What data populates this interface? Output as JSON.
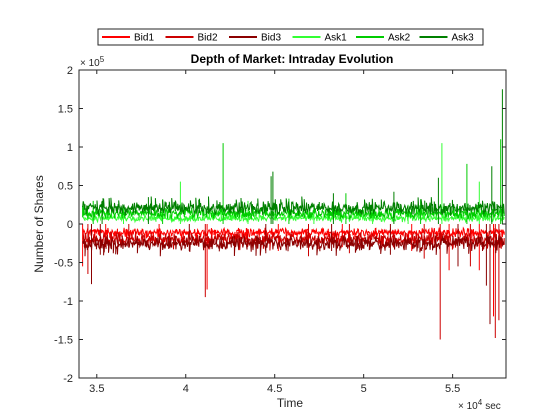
{
  "chart_data": {
    "type": "line",
    "title": "Depth of Market: Intraday Evolution",
    "xlabel": "Time",
    "ylabel": "Number of Shares",
    "x_unit_label": "sec",
    "x_exponent": "× 10",
    "x_exponent_power": "4",
    "y_exponent": "× 10",
    "y_exponent_power": "5",
    "xlim": [
      34000,
      58000
    ],
    "ylim": [
      -200000,
      200000
    ],
    "x_ticks": [
      35000,
      40000,
      45000,
      50000,
      55000
    ],
    "x_tick_labels": [
      "3.5",
      "4",
      "4.5",
      "5",
      "5.5"
    ],
    "y_ticks": [
      -200000,
      -150000,
      -100000,
      -50000,
      0,
      50000,
      100000,
      150000,
      200000
    ],
    "y_tick_labels": [
      "-2",
      "-1.5",
      "-1",
      "-0.5",
      "0",
      "0.5",
      "1",
      "1.5",
      "2"
    ],
    "grid": false,
    "legend_placement": "top-outside-horizontal",
    "series": [
      {
        "name": "Bid1",
        "color": "#ff0000",
        "side": -1,
        "base": 8000,
        "noise": 6000,
        "spikes": [
          [
            34200,
            -55000
          ],
          [
            35500,
            -28000
          ],
          [
            38500,
            -25000
          ],
          [
            41200,
            -85000
          ],
          [
            45200,
            -35000
          ],
          [
            48800,
            -30000
          ],
          [
            52700,
            -35000
          ],
          [
            54800,
            -60000
          ],
          [
            56500,
            -60000
          ],
          [
            57300,
            -120000
          ]
        ]
      },
      {
        "name": "Bid2",
        "color": "#cc0000",
        "side": -1,
        "base": 15000,
        "noise": 9000,
        "spikes": [
          [
            34500,
            -65000
          ],
          [
            36800,
            -30000
          ],
          [
            41100,
            -95000
          ],
          [
            46900,
            -42000
          ],
          [
            49200,
            -38000
          ],
          [
            53400,
            -45000
          ],
          [
            54300,
            -150000
          ],
          [
            56000,
            -55000
          ],
          [
            57400,
            -148000
          ],
          [
            57600,
            -125000
          ]
        ]
      },
      {
        "name": "Bid3",
        "color": "#8b0000",
        "side": -1,
        "base": 20000,
        "noise": 10000,
        "spikes": [
          [
            34700,
            -78000
          ],
          [
            35200,
            -40000
          ],
          [
            40200,
            -35000
          ],
          [
            44500,
            -38000
          ],
          [
            48200,
            -35000
          ],
          [
            51500,
            -40000
          ],
          [
            55300,
            -55000
          ],
          [
            56900,
            -80000
          ],
          [
            57100,
            -130000
          ]
        ]
      },
      {
        "name": "Ask1",
        "color": "#33ff33",
        "side": 1,
        "base": 5000,
        "noise": 5000,
        "spikes": [
          [
            36500,
            22000
          ],
          [
            39700,
            55000
          ],
          [
            43500,
            30000
          ],
          [
            47200,
            25000
          ],
          [
            50500,
            28000
          ],
          [
            52500,
            25000
          ],
          [
            54400,
            105000
          ],
          [
            56500,
            55000
          ]
        ]
      },
      {
        "name": "Ask2",
        "color": "#00cc00",
        "side": 1,
        "base": 10000,
        "noise": 7000,
        "spikes": [
          [
            34800,
            30000
          ],
          [
            38700,
            32000
          ],
          [
            42100,
            105000
          ],
          [
            45800,
            33000
          ],
          [
            49000,
            40000
          ],
          [
            53200,
            32000
          ],
          [
            55800,
            78000
          ],
          [
            57700,
            110000
          ]
        ]
      },
      {
        "name": "Ask3",
        "color": "#008000",
        "side": 1,
        "base": 16000,
        "noise": 9000,
        "spikes": [
          [
            35300,
            30000
          ],
          [
            37900,
            35000
          ],
          [
            44800,
            62000
          ],
          [
            44900,
            68000
          ],
          [
            48300,
            40000
          ],
          [
            51700,
            42000
          ],
          [
            54200,
            60000
          ],
          [
            57200,
            75000
          ],
          [
            57800,
            175000
          ]
        ]
      }
    ]
  }
}
